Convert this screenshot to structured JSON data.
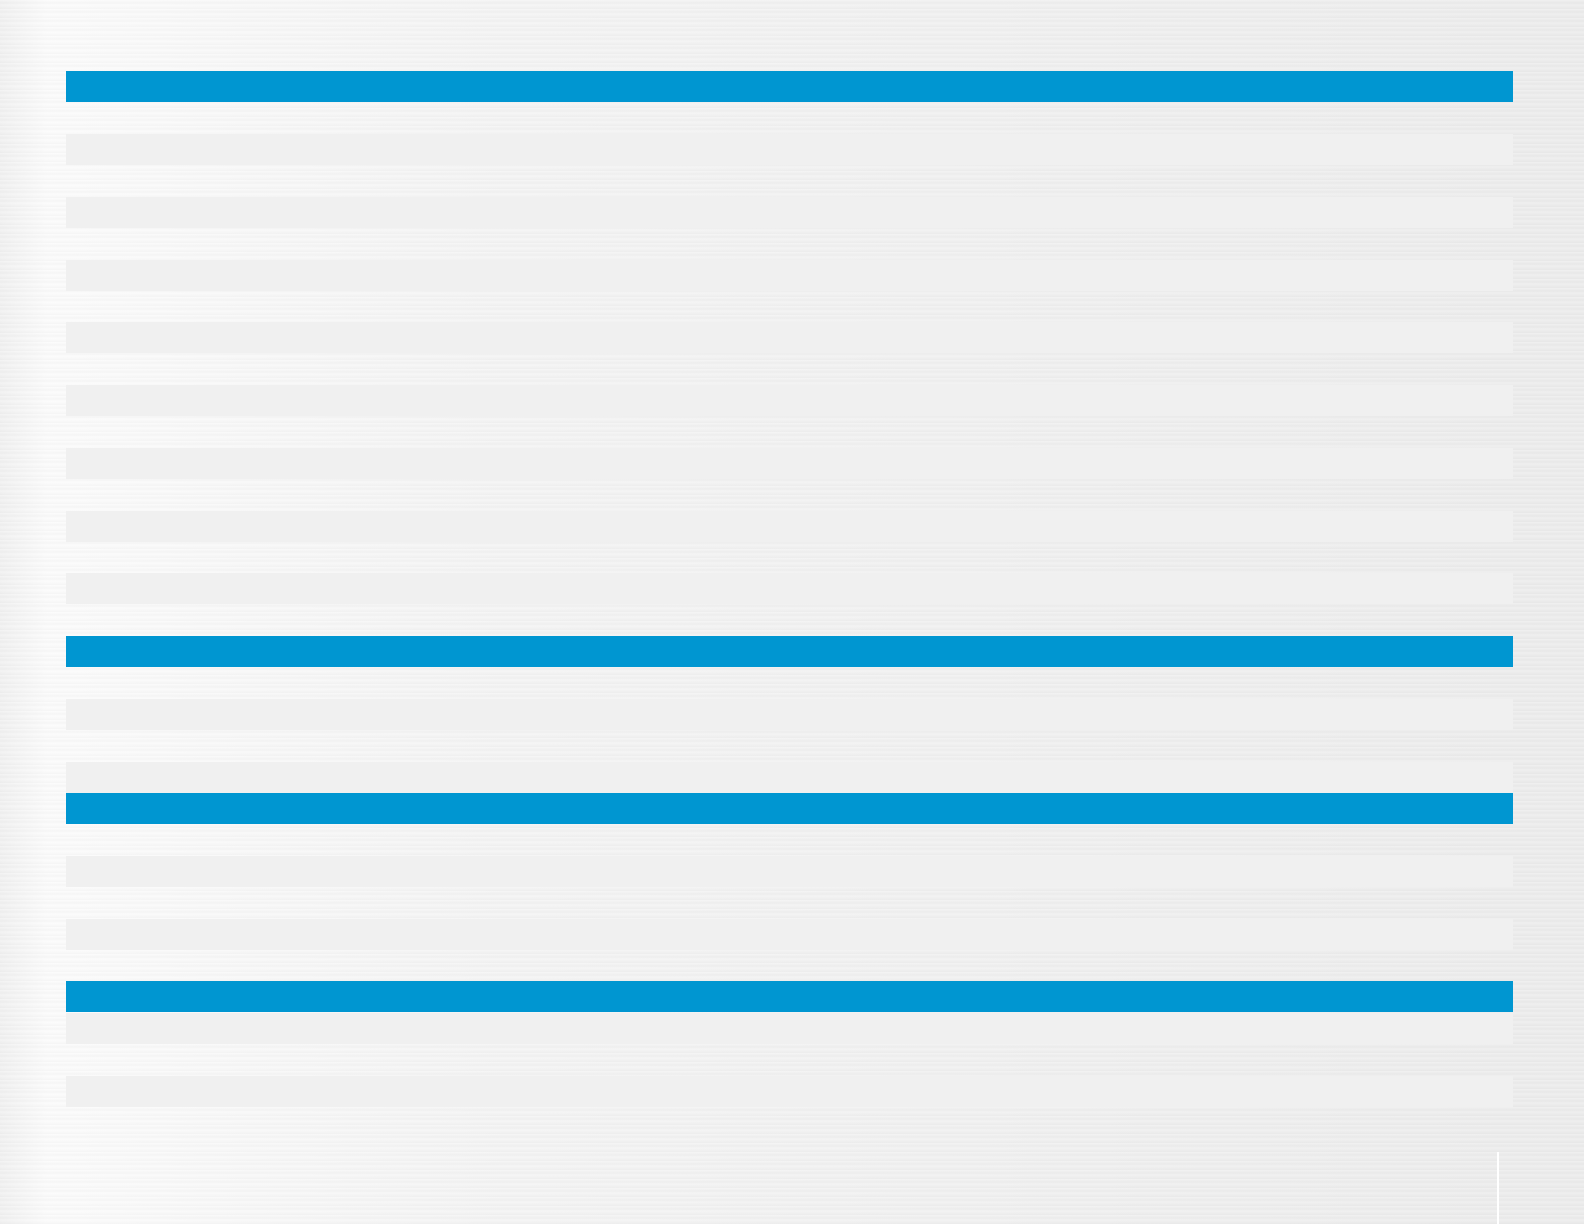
{
  "colors": {
    "header_bar": "#0096d1",
    "row_stripe": "#f0f0f0",
    "background": "#ececec",
    "divider": "#ffffff"
  }
}
